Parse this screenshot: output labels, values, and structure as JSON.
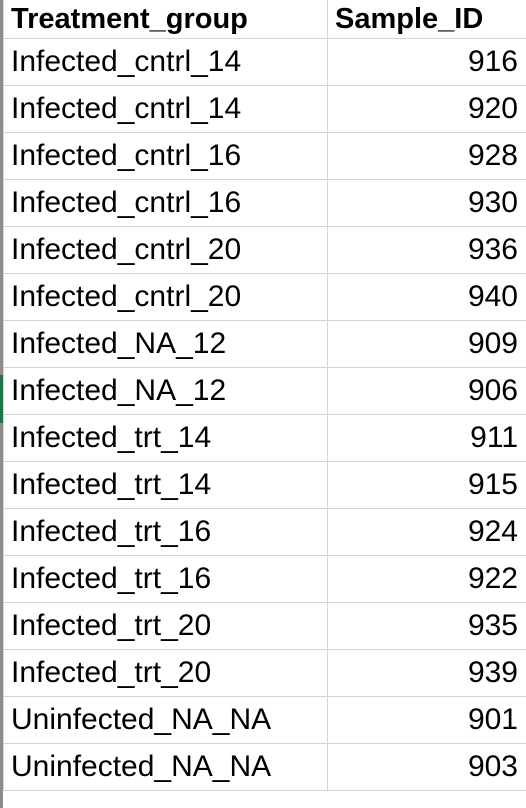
{
  "header": {
    "col_a": "Treatment_group",
    "col_b": "Sample_ID"
  },
  "rows": [
    {
      "group": "Infected_cntrl_14",
      "id": "916"
    },
    {
      "group": "Infected_cntrl_14",
      "id": "920"
    },
    {
      "group": "Infected_cntrl_16",
      "id": "928"
    },
    {
      "group": "Infected_cntrl_16",
      "id": "930"
    },
    {
      "group": "Infected_cntrl_20",
      "id": "936"
    },
    {
      "group": "Infected_cntrl_20",
      "id": "940"
    },
    {
      "group": "Infected_NA_12",
      "id": "909"
    },
    {
      "group": "Infected_NA_12",
      "id": "906"
    },
    {
      "group": "Infected_trt_14",
      "id": "911"
    },
    {
      "group": "Infected_trt_14",
      "id": "915"
    },
    {
      "group": "Infected_trt_16",
      "id": "924"
    },
    {
      "group": "Infected_trt_16",
      "id": "922"
    },
    {
      "group": "Infected_trt_20",
      "id": "935"
    },
    {
      "group": "Infected_trt_20",
      "id": "939"
    },
    {
      "group": "Uninfected_NA_NA",
      "id": "901"
    },
    {
      "group": "Uninfected_NA_NA",
      "id": "903"
    }
  ],
  "colors": {
    "gridline": "#d4d4d4",
    "selection_accent": "#217346"
  }
}
